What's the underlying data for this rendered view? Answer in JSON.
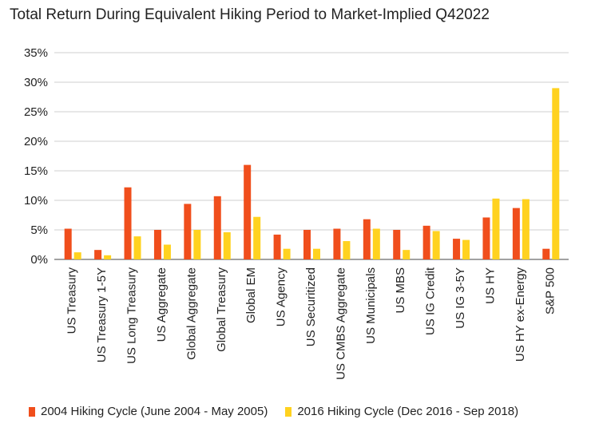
{
  "chart_data": {
    "type": "bar",
    "title": "Total Return During Equivalent Hiking Period to Market-Implied Q42022",
    "xlabel": "",
    "ylabel": "",
    "ylim": [
      0,
      35
    ],
    "y_ticks": [
      0,
      5,
      10,
      15,
      20,
      25,
      30,
      35
    ],
    "y_tick_labels": [
      "0%",
      "5%",
      "10%",
      "15%",
      "20%",
      "25%",
      "30%",
      "35%"
    ],
    "grid": true,
    "legend_position": "bottom",
    "categories": [
      "US Treasury",
      "US Treasury 1-5Y",
      "US Long Treasury",
      "US Aggregate",
      "Global Aggregate",
      "Global Treasury",
      "Global EM",
      "US Agency",
      "US Securitized",
      "US CMBS Aggregate",
      "US Municipals",
      "US MBS",
      "US IG Credit",
      "US IG 3-5Y",
      "US HY",
      "US HY ex-Energy",
      "S&P 500"
    ],
    "series": [
      {
        "name": "2004 Hiking Cycle (June 2004 - May 2005)",
        "color": "#f04e1c",
        "values": [
          5.2,
          1.6,
          12.2,
          5.0,
          9.4,
          10.7,
          16.0,
          4.2,
          5.0,
          5.2,
          6.8,
          5.0,
          5.7,
          3.5,
          7.1,
          8.7,
          1.8
        ]
      },
      {
        "name": "2016 Hiking Cycle (Dec 2016 - Sep 2018)",
        "color": "#ffd21f",
        "values": [
          1.2,
          0.7,
          3.9,
          2.5,
          5.0,
          4.6,
          7.2,
          1.8,
          1.8,
          3.1,
          5.2,
          1.6,
          4.8,
          3.3,
          10.3,
          10.2,
          29.0
        ]
      }
    ]
  }
}
